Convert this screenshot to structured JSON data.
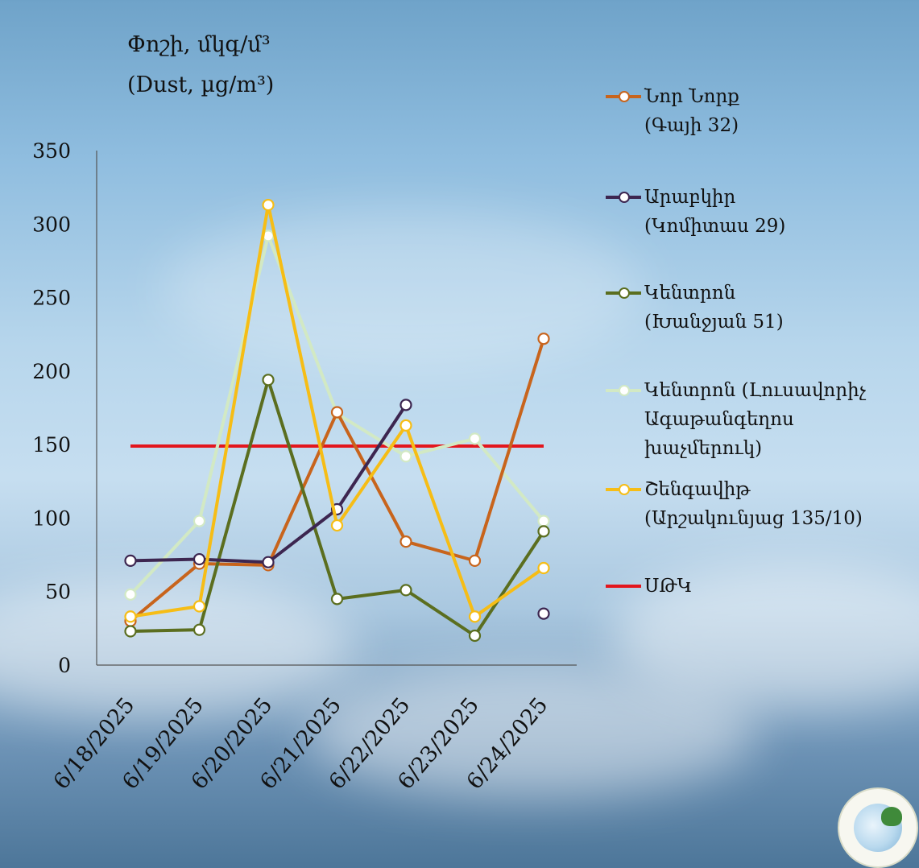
{
  "title_line1": "Փոշի, մկգ/մ³",
  "title_line2": "(Dust, µg/m³)",
  "legend": [
    {
      "line1": "Նոր Նորք",
      "line2": "(Գայի 32)",
      "line3": ""
    },
    {
      "line1": "Արաբկիր",
      "line2": "(Կոմիտաս 29)",
      "line3": ""
    },
    {
      "line1": "Կենտրոն",
      "line2": "(Խանջյան 51)",
      "line3": ""
    },
    {
      "line1": "Կենտրոն (Լուսավորիչ",
      "line2": "Ագաթանգեղոս",
      "line3": "խաչմերուկ)"
    },
    {
      "line1": "Շենգավիթ",
      "line2": "(Արշակունյաց 135/10)",
      "line3": ""
    },
    {
      "line1": "ՍԹԿ",
      "line2": "",
      "line3": ""
    }
  ],
  "chart_data": {
    "type": "line",
    "title": "Փոշի, մկգ/մ³ (Dust, µg/m³)",
    "xlabel": "",
    "ylabel": "",
    "ylim": [
      0,
      350
    ],
    "yticks": [
      0,
      50,
      100,
      150,
      200,
      250,
      300,
      350
    ],
    "categories": [
      "6/18/2025",
      "6/19/2025",
      "6/20/2025",
      "6/21/2025",
      "6/22/2025",
      "6/23/2025",
      "6/24/2025"
    ],
    "grid": false,
    "legend_position": "right",
    "series": [
      {
        "name": "Նոր Նորք (Գայի 32)",
        "color": "#c8641c",
        "values": [
          30,
          69,
          68,
          172,
          84,
          71,
          222
        ]
      },
      {
        "name": "Արաբկիր (Կոմիտաս 29)",
        "color": "#3d2650",
        "values": [
          71,
          72,
          70,
          106,
          177,
          null,
          35
        ]
      },
      {
        "name": "Կենտրոն (Խանջյան 51)",
        "color": "#5b6e1f",
        "values": [
          23,
          24,
          194,
          45,
          51,
          20,
          91
        ]
      },
      {
        "name": "Կենտրոն (Լուսավորիչ Ագաթանգեղոս խաչմերուկ)",
        "color": "#d2e9c4",
        "values": [
          48,
          98,
          292,
          171,
          142,
          154,
          98
        ]
      },
      {
        "name": "Շենգավիթ (Արշակունյաց 135/10)",
        "color": "#f6bd16",
        "values": [
          33,
          40,
          313,
          95,
          163,
          33,
          66
        ]
      }
    ],
    "threshold": {
      "name": "ՍԹԿ",
      "color": "#e3161d",
      "value": 149
    }
  }
}
